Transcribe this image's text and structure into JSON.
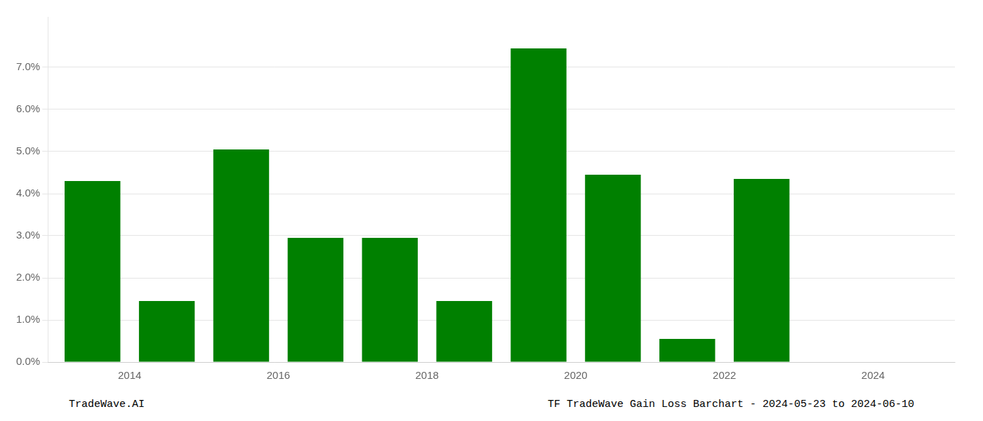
{
  "chart_data": {
    "type": "bar",
    "x": [
      2013,
      2014,
      2015,
      2016,
      2017,
      2018,
      2019,
      2020,
      2021,
      2022,
      2023
    ],
    "values": [
      4.3,
      1.45,
      5.05,
      2.95,
      2.95,
      1.45,
      7.45,
      4.45,
      0.55,
      4.35,
      0.0
    ],
    "color": "#008000",
    "xlim": [
      2012.4,
      2024.6
    ],
    "xticks": [
      {
        "value": 2013.5,
        "label": "2014"
      },
      {
        "value": 2015.5,
        "label": "2016"
      },
      {
        "value": 2017.5,
        "label": "2018"
      },
      {
        "value": 2019.5,
        "label": "2020"
      },
      {
        "value": 2021.5,
        "label": "2022"
      },
      {
        "value": 2023.5,
        "label": "2024"
      }
    ],
    "ylim": [
      0,
      8.2
    ],
    "yticks": [
      {
        "value": 0.0,
        "label": "0.0%"
      },
      {
        "value": 1.0,
        "label": "1.0%"
      },
      {
        "value": 2.0,
        "label": "2.0%"
      },
      {
        "value": 3.0,
        "label": "3.0%"
      },
      {
        "value": 4.0,
        "label": "4.0%"
      },
      {
        "value": 5.0,
        "label": "5.0%"
      },
      {
        "value": 6.0,
        "label": "6.0%"
      },
      {
        "value": 7.0,
        "label": "7.0%"
      }
    ],
    "grid": true,
    "annotations": [
      "TradeWave.AI",
      "TF TradeWave Gain Loss Barchart - 2024-05-23 to 2024-06-10"
    ]
  }
}
